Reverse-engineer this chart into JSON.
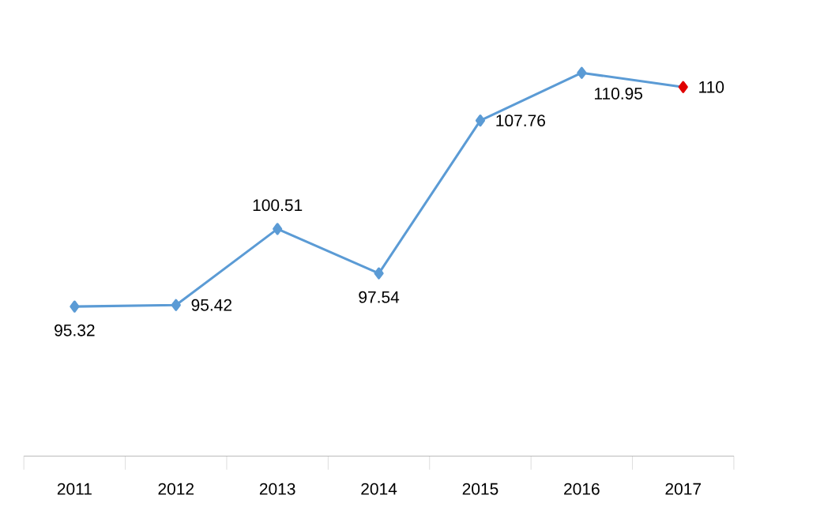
{
  "chart_data": {
    "type": "line",
    "categories": [
      "2011",
      "2012",
      "2013",
      "2014",
      "2015",
      "2016",
      "2017"
    ],
    "series": [
      {
        "color": "#5b9bd5",
        "colors": [
          "#5b9bd5",
          "#5b9bd5",
          "#5b9bd5",
          "#5b9bd5",
          "#5b9bd5",
          "#5b9bd5",
          "#e00000"
        ],
        "values": [
          95.32,
          95.42,
          100.51,
          97.54,
          107.76,
          110.95,
          110
        ]
      }
    ],
    "data_labels": true,
    "marker": "diamond",
    "line_style": "solid",
    "grid": false,
    "legend": false
  }
}
